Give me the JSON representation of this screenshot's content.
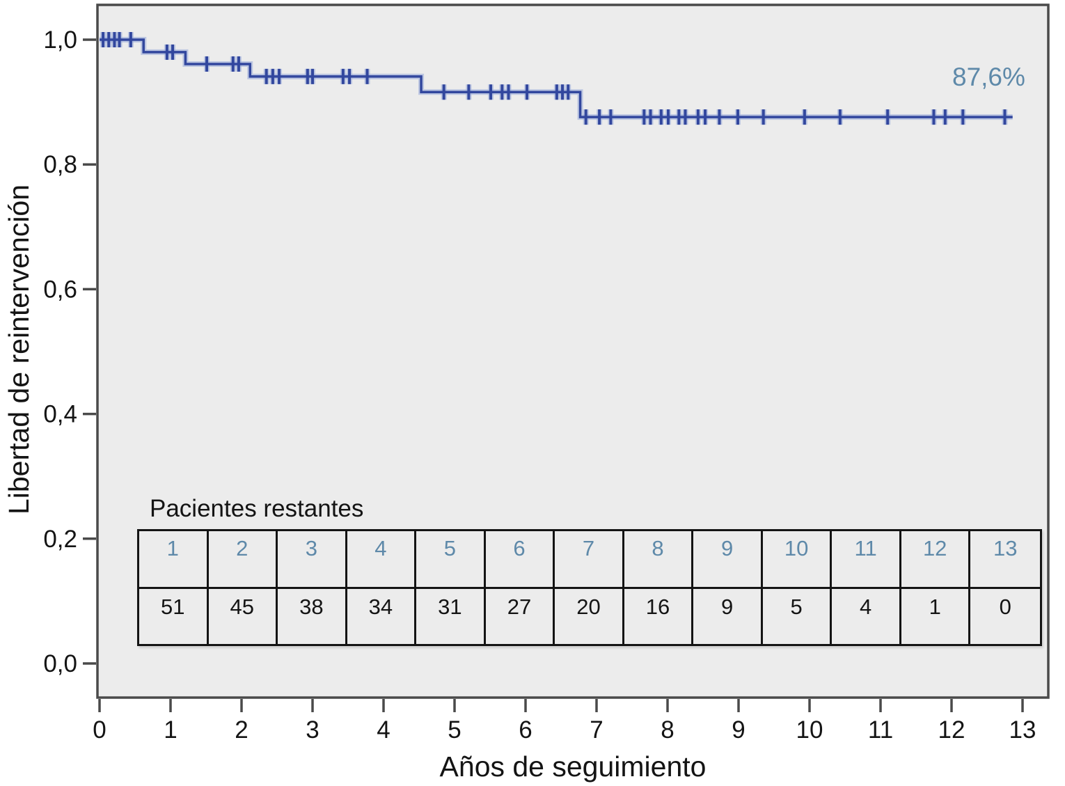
{
  "figure": {
    "y_axis_title": "Libertad de reintervención",
    "x_axis_title": "Años de seguimiento",
    "annotation": "87,6%",
    "table_title": "Pacientes restantes"
  },
  "colors": {
    "curve": "#32479E",
    "curve_halo": "#9DAEDA",
    "accent_blue": "#5E89A9",
    "plot_background": "#ECECEC",
    "page_background": "#FFFFFF",
    "axis_line": "#4A4A4A",
    "table_border": "#141414",
    "text": "#141414"
  },
  "chart_data": {
    "type": "line",
    "subtype": "kaplan-meier-step-function",
    "title": "",
    "xlabel": "Años de seguimiento",
    "ylabel": "Libertad de reintervención",
    "xlim": [
      0,
      13
    ],
    "ylim": [
      0.0,
      1.0
    ],
    "grid": false,
    "legend_position": "none",
    "x_ticks": [
      "0",
      "1",
      "2",
      "3",
      "4",
      "5",
      "6",
      "7",
      "8",
      "9",
      "10",
      "11",
      "12",
      "13"
    ],
    "x_tick_values": [
      0,
      1,
      2,
      3,
      4,
      5,
      6,
      7,
      8,
      9,
      10,
      11,
      12,
      13
    ],
    "y_ticks": [
      "0,0",
      "0,2",
      "0,4",
      "0,6",
      "0,8",
      "1,0"
    ],
    "y_tick_values": [
      0.0,
      0.2,
      0.4,
      0.6,
      0.8,
      1.0
    ],
    "final_value": 0.876,
    "final_value_label": "87,6%",
    "series": [
      {
        "name": "Libertad de reintervención",
        "steps": [
          {
            "t_start": 0.0,
            "t_end": 0.62,
            "value": 1.0
          },
          {
            "t_start": 0.62,
            "t_end": 1.21,
            "value": 0.98
          },
          {
            "t_start": 1.21,
            "t_end": 2.12,
            "value": 0.961
          },
          {
            "t_start": 2.12,
            "t_end": 4.53,
            "value": 0.941
          },
          {
            "t_start": 4.53,
            "t_end": 6.77,
            "value": 0.916
          },
          {
            "t_start": 6.77,
            "t_end": 12.86,
            "value": 0.876
          }
        ],
        "censor_marks": [
          [
            0.05,
            1.0
          ],
          [
            0.13,
            1.0
          ],
          [
            0.21,
            1.0
          ],
          [
            0.28,
            1.0
          ],
          [
            0.44,
            1.0
          ],
          [
            0.95,
            0.98
          ],
          [
            1.03,
            0.98
          ],
          [
            1.51,
            0.961
          ],
          [
            1.88,
            0.961
          ],
          [
            1.96,
            0.961
          ],
          [
            2.35,
            0.941
          ],
          [
            2.44,
            0.941
          ],
          [
            2.53,
            0.941
          ],
          [
            2.93,
            0.941
          ],
          [
            3.0,
            0.941
          ],
          [
            3.43,
            0.941
          ],
          [
            3.52,
            0.941
          ],
          [
            3.77,
            0.941
          ],
          [
            4.85,
            0.916
          ],
          [
            5.2,
            0.916
          ],
          [
            5.51,
            0.916
          ],
          [
            5.67,
            0.916
          ],
          [
            5.76,
            0.916
          ],
          [
            6.02,
            0.916
          ],
          [
            6.44,
            0.916
          ],
          [
            6.52,
            0.916
          ],
          [
            6.6,
            0.916
          ],
          [
            6.85,
            0.876
          ],
          [
            7.04,
            0.876
          ],
          [
            7.2,
            0.876
          ],
          [
            7.67,
            0.876
          ],
          [
            7.76,
            0.876
          ],
          [
            7.91,
            0.876
          ],
          [
            8.01,
            0.876
          ],
          [
            8.16,
            0.876
          ],
          [
            8.25,
            0.876
          ],
          [
            8.43,
            0.876
          ],
          [
            8.53,
            0.876
          ],
          [
            8.73,
            0.876
          ],
          [
            8.99,
            0.876
          ],
          [
            9.35,
            0.876
          ],
          [
            9.93,
            0.876
          ],
          [
            10.43,
            0.876
          ],
          [
            11.1,
            0.876
          ],
          [
            11.75,
            0.876
          ],
          [
            11.91,
            0.876
          ],
          [
            12.16,
            0.876
          ],
          [
            12.75,
            0.876
          ]
        ]
      }
    ],
    "at_risk_table": {
      "title": "Pacientes restantes",
      "years": [
        "1",
        "2",
        "3",
        "4",
        "5",
        "6",
        "7",
        "8",
        "9",
        "10",
        "11",
        "12",
        "13"
      ],
      "patients_remaining": [
        "51",
        "45",
        "38",
        "34",
        "31",
        "27",
        "20",
        "16",
        "9",
        "5",
        "4",
        "1",
        "0"
      ]
    }
  }
}
